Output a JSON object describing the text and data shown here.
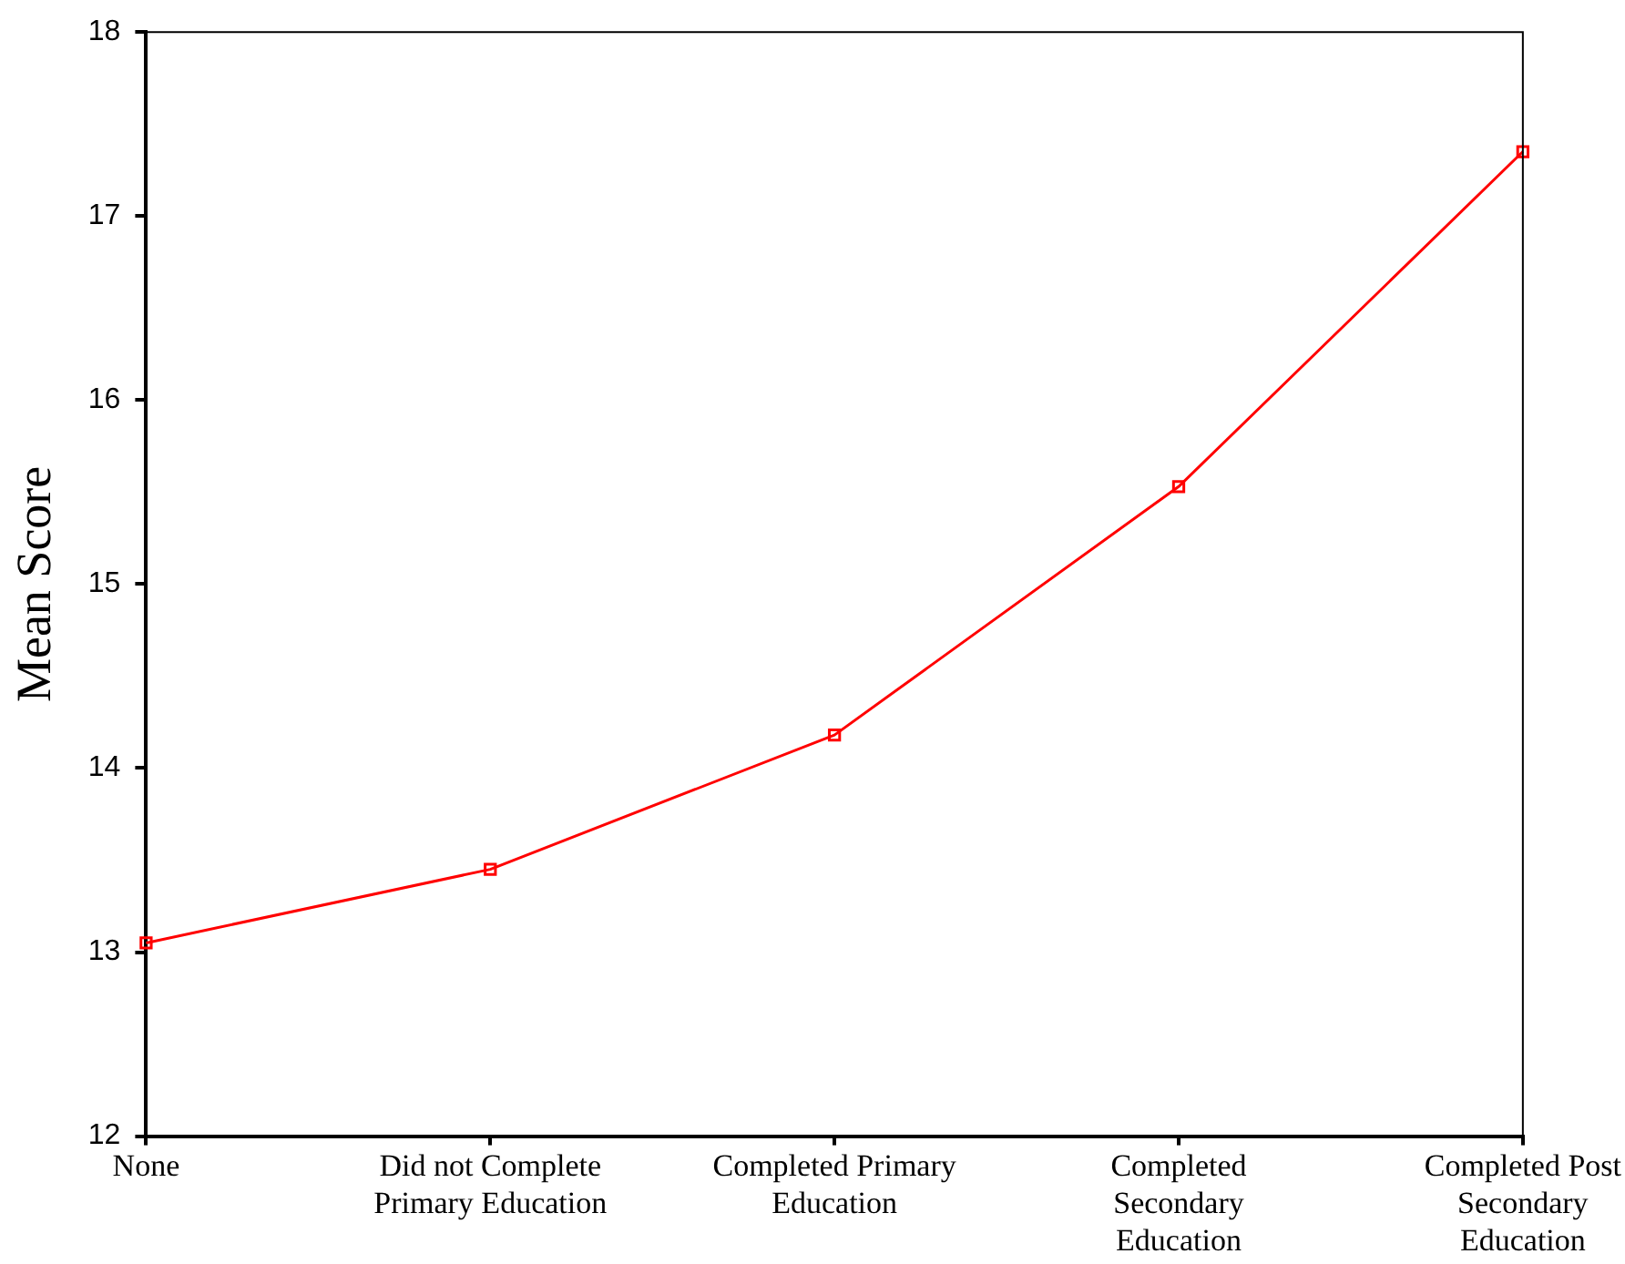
{
  "chart_data": {
    "type": "line",
    "ylabel": "Mean Score",
    "categories": [
      "None",
      "Did not Complete Primary Education",
      "Completed Primary Education",
      "Completed Secondary Education",
      "Completed Post Secondary Education"
    ],
    "series": [
      {
        "color": "#ff0000",
        "values": [
          13.05,
          13.45,
          14.18,
          15.53,
          17.35
        ]
      }
    ],
    "ylim": [
      12,
      18
    ],
    "yticks": [
      12,
      13,
      14,
      15,
      16,
      17,
      18
    ],
    "grid": false,
    "legend": false,
    "marker": "square",
    "line_style": "solid"
  }
}
